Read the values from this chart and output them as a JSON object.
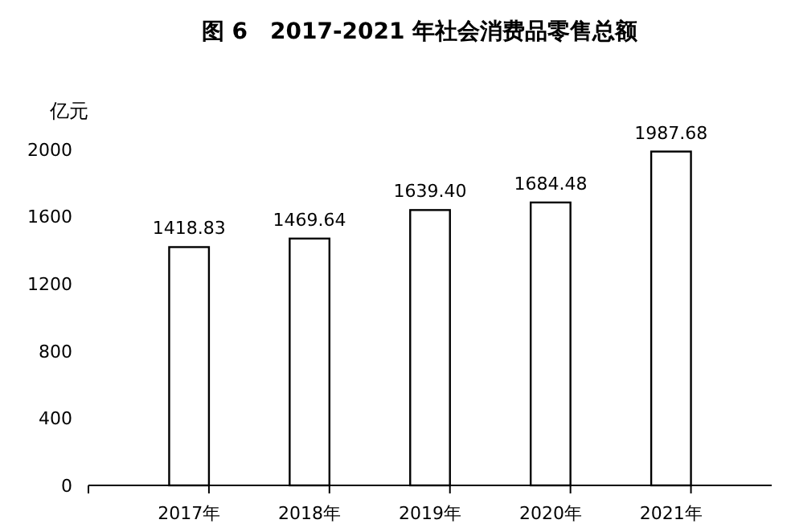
{
  "chart_data": {
    "type": "bar",
    "title": "图 6　2017-2021 年社会消费品零售总额",
    "ylabel": "亿元",
    "categories": [
      "2017年",
      "2018年",
      "2019年",
      "2020年",
      "2021年"
    ],
    "values": [
      1418.83,
      1469.64,
      1639.4,
      1684.48,
      1987.68
    ],
    "value_labels": [
      "1418.83",
      "1469.64",
      "1639.40",
      "1684.48",
      "1987.68"
    ],
    "color": "#ffffff",
    "ylim": [
      0,
      2000
    ],
    "yticks": [
      0,
      400,
      800,
      1200,
      1600,
      2000
    ],
    "grid": false
  }
}
